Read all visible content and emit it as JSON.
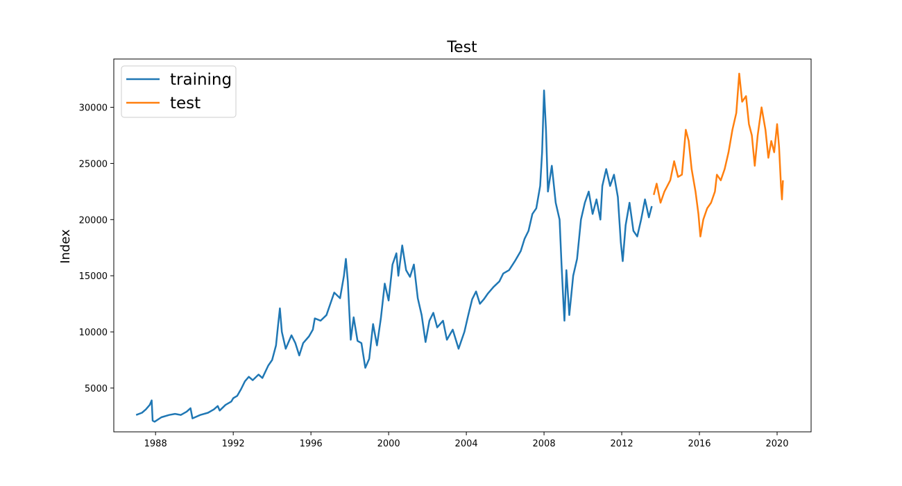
{
  "chart_data": {
    "type": "line",
    "title": "Test",
    "xlabel": "",
    "ylabel": "Index",
    "xlim": [
      1985.85,
      2021.75
    ],
    "ylim": [
      1100,
      34300
    ],
    "x_ticks": [
      1988,
      1992,
      1996,
      2000,
      2004,
      2008,
      2012,
      2016,
      2020
    ],
    "y_ticks": [
      5000,
      10000,
      15000,
      20000,
      25000,
      30000
    ],
    "grid": false,
    "legend_position": "top-left",
    "series": [
      {
        "name": "training",
        "color": "#1f77b4",
        "points": [
          [
            1987.0,
            2600
          ],
          [
            1987.3,
            2800
          ],
          [
            1987.5,
            3100
          ],
          [
            1987.7,
            3500
          ],
          [
            1987.8,
            3900
          ],
          [
            1987.85,
            2100
          ],
          [
            1987.95,
            2000
          ],
          [
            1988.3,
            2400
          ],
          [
            1988.7,
            2600
          ],
          [
            1989.0,
            2700
          ],
          [
            1989.3,
            2600
          ],
          [
            1989.6,
            2900
          ],
          [
            1989.8,
            3200
          ],
          [
            1989.9,
            2300
          ],
          [
            1990.3,
            2600
          ],
          [
            1990.7,
            2800
          ],
          [
            1991.0,
            3100
          ],
          [
            1991.2,
            3400
          ],
          [
            1991.3,
            3000
          ],
          [
            1991.6,
            3500
          ],
          [
            1991.9,
            3800
          ],
          [
            1992.0,
            4100
          ],
          [
            1992.2,
            4300
          ],
          [
            1992.4,
            4900
          ],
          [
            1992.6,
            5600
          ],
          [
            1992.8,
            6000
          ],
          [
            1993.0,
            5700
          ],
          [
            1993.3,
            6200
          ],
          [
            1993.5,
            5900
          ],
          [
            1993.8,
            7000
          ],
          [
            1994.0,
            7500
          ],
          [
            1994.2,
            8800
          ],
          [
            1994.3,
            10500
          ],
          [
            1994.4,
            12100
          ],
          [
            1994.5,
            10000
          ],
          [
            1994.7,
            8500
          ],
          [
            1995.0,
            9700
          ],
          [
            1995.2,
            9000
          ],
          [
            1995.4,
            7900
          ],
          [
            1995.6,
            9000
          ],
          [
            1995.9,
            9600
          ],
          [
            1996.1,
            10200
          ],
          [
            1996.2,
            11200
          ],
          [
            1996.5,
            11000
          ],
          [
            1996.8,
            11500
          ],
          [
            1997.0,
            12500
          ],
          [
            1997.2,
            13500
          ],
          [
            1997.5,
            13000
          ],
          [
            1997.7,
            15000
          ],
          [
            1997.8,
            16500
          ],
          [
            1997.9,
            14500
          ],
          [
            1998.05,
            9300
          ],
          [
            1998.2,
            11300
          ],
          [
            1998.4,
            9200
          ],
          [
            1998.6,
            9000
          ],
          [
            1998.8,
            6800
          ],
          [
            1999.0,
            7600
          ],
          [
            1999.2,
            10700
          ],
          [
            1999.4,
            8800
          ],
          [
            1999.6,
            11200
          ],
          [
            1999.8,
            14300
          ],
          [
            2000.0,
            12800
          ],
          [
            2000.2,
            16000
          ],
          [
            2000.4,
            17000
          ],
          [
            2000.5,
            15000
          ],
          [
            2000.7,
            17700
          ],
          [
            2000.9,
            15500
          ],
          [
            2001.1,
            14900
          ],
          [
            2001.3,
            16000
          ],
          [
            2001.5,
            13000
          ],
          [
            2001.7,
            11500
          ],
          [
            2001.9,
            9100
          ],
          [
            2002.1,
            11000
          ],
          [
            2002.3,
            11700
          ],
          [
            2002.5,
            10400
          ],
          [
            2002.8,
            11000
          ],
          [
            2003.0,
            9300
          ],
          [
            2003.3,
            10200
          ],
          [
            2003.6,
            8500
          ],
          [
            2003.9,
            10000
          ],
          [
            2004.1,
            11500
          ],
          [
            2004.3,
            12900
          ],
          [
            2004.5,
            13600
          ],
          [
            2004.7,
            12500
          ],
          [
            2004.9,
            12900
          ],
          [
            2005.1,
            13400
          ],
          [
            2005.4,
            14000
          ],
          [
            2005.7,
            14500
          ],
          [
            2005.9,
            15200
          ],
          [
            2006.2,
            15500
          ],
          [
            2006.5,
            16300
          ],
          [
            2006.8,
            17200
          ],
          [
            2007.0,
            18300
          ],
          [
            2007.2,
            19000
          ],
          [
            2007.4,
            20500
          ],
          [
            2007.6,
            21000
          ],
          [
            2007.8,
            23000
          ],
          [
            2007.9,
            26000
          ],
          [
            2008.0,
            31500
          ],
          [
            2008.1,
            28000
          ],
          [
            2008.2,
            22500
          ],
          [
            2008.4,
            24800
          ],
          [
            2008.6,
            21500
          ],
          [
            2008.8,
            20000
          ],
          [
            2008.9,
            16000
          ],
          [
            2009.0,
            12500
          ],
          [
            2009.05,
            11000
          ],
          [
            2009.15,
            15500
          ],
          [
            2009.3,
            11500
          ],
          [
            2009.5,
            15000
          ],
          [
            2009.7,
            16500
          ],
          [
            2009.9,
            20000
          ],
          [
            2010.1,
            21500
          ],
          [
            2010.3,
            22500
          ],
          [
            2010.5,
            20500
          ],
          [
            2010.7,
            21800
          ],
          [
            2010.9,
            20000
          ],
          [
            2011.0,
            23000
          ],
          [
            2011.2,
            24500
          ],
          [
            2011.4,
            23000
          ],
          [
            2011.6,
            24000
          ],
          [
            2011.8,
            22000
          ],
          [
            2011.95,
            18000
          ],
          [
            2012.05,
            16300
          ],
          [
            2012.2,
            19500
          ],
          [
            2012.4,
            21500
          ],
          [
            2012.6,
            19000
          ],
          [
            2012.8,
            18500
          ],
          [
            2013.0,
            20000
          ],
          [
            2013.2,
            21800
          ],
          [
            2013.4,
            20200
          ],
          [
            2013.55,
            21200
          ]
        ]
      },
      {
        "name": "test",
        "color": "#ff7f0e",
        "points": [
          [
            2013.65,
            22200
          ],
          [
            2013.8,
            23200
          ],
          [
            2014.0,
            21500
          ],
          [
            2014.2,
            22500
          ],
          [
            2014.5,
            23500
          ],
          [
            2014.7,
            25200
          ],
          [
            2014.9,
            23800
          ],
          [
            2015.1,
            24000
          ],
          [
            2015.3,
            28000
          ],
          [
            2015.45,
            27000
          ],
          [
            2015.6,
            24500
          ],
          [
            2015.8,
            22500
          ],
          [
            2015.95,
            20500
          ],
          [
            2016.05,
            18500
          ],
          [
            2016.2,
            20000
          ],
          [
            2016.4,
            21000
          ],
          [
            2016.6,
            21500
          ],
          [
            2016.8,
            22500
          ],
          [
            2016.9,
            24000
          ],
          [
            2017.1,
            23500
          ],
          [
            2017.3,
            24500
          ],
          [
            2017.5,
            26000
          ],
          [
            2017.7,
            28000
          ],
          [
            2017.9,
            29500
          ],
          [
            2018.05,
            33000
          ],
          [
            2018.2,
            30500
          ],
          [
            2018.4,
            31000
          ],
          [
            2018.55,
            28500
          ],
          [
            2018.7,
            27500
          ],
          [
            2018.85,
            24800
          ],
          [
            2019.0,
            27500
          ],
          [
            2019.2,
            30000
          ],
          [
            2019.4,
            28000
          ],
          [
            2019.55,
            25500
          ],
          [
            2019.7,
            27000
          ],
          [
            2019.85,
            26000
          ],
          [
            2020.0,
            28500
          ],
          [
            2020.1,
            26500
          ],
          [
            2020.2,
            23000
          ],
          [
            2020.25,
            21800
          ],
          [
            2020.3,
            23500
          ]
        ]
      }
    ]
  }
}
